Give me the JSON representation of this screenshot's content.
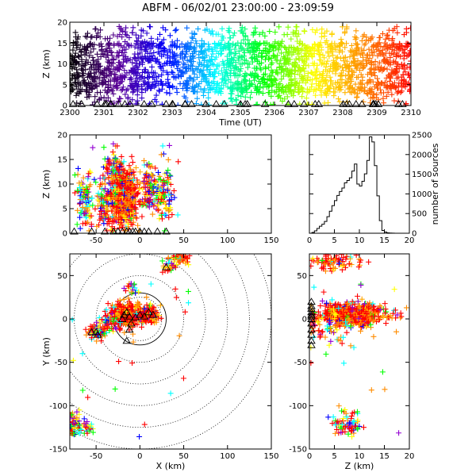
{
  "title": "ABFM - 06/02/01 23:00:00 - 23:09:59",
  "chart_data": [
    {
      "id": "time-height",
      "type": "scatter",
      "xlabel": "Time (UT)",
      "ylabel": "Z (km)",
      "xlim": [
        2300,
        2310
      ],
      "ylim": [
        0,
        20
      ],
      "xticks": [
        "2300",
        "2301",
        "2302",
        "2303",
        "2304",
        "2305",
        "2306",
        "2307",
        "2308",
        "2309",
        "2310"
      ],
      "yticks": [
        "0",
        "5",
        "10",
        "15",
        "20"
      ],
      "main_band_z": [
        3,
        15
      ],
      "color_encoding": "time",
      "color_scale": [
        "#000000",
        "#5b0099",
        "#0000ff",
        "#00ffff",
        "#00ff00",
        "#ffff00",
        "#ff8c00",
        "#ff0000"
      ]
    },
    {
      "id": "x-height",
      "type": "scatter",
      "xlabel": "",
      "ylabel": "Z (km)",
      "xlim": [
        -80,
        150
      ],
      "ylim": [
        0,
        20
      ],
      "xticks": [
        "-50",
        "0",
        "50",
        "100",
        "150"
      ],
      "yticks": [
        "0",
        "5",
        "10",
        "15",
        "20"
      ],
      "core_x_range": [
        -30,
        5
      ],
      "core_z_range": [
        2,
        14
      ]
    },
    {
      "id": "height-histogram",
      "type": "line",
      "xlabel": "",
      "ylabel": "number of sources",
      "xlim": [
        0,
        20
      ],
      "ylim": [
        0,
        2500
      ],
      "xticks": [
        "0",
        "5",
        "10",
        "15",
        "20"
      ],
      "yticks": [
        "0",
        "500",
        "1000",
        "1500",
        "2000",
        "2500"
      ],
      "x": [
        0,
        0.5,
        1,
        1.5,
        2,
        2.5,
        3,
        3.5,
        4,
        4.5,
        5,
        5.5,
        6,
        6.5,
        7,
        7.5,
        8,
        8.5,
        9,
        9.5,
        10,
        10.5,
        11,
        11.5,
        12,
        12.5,
        13,
        13.5,
        14,
        14.5,
        15,
        15.5,
        16,
        16.5,
        17,
        17.5,
        18,
        18.5,
        19,
        19.5
      ],
      "values": [
        0,
        20,
        60,
        120,
        180,
        230,
        300,
        420,
        560,
        700,
        830,
        960,
        1060,
        1150,
        1280,
        1340,
        1410,
        1580,
        1760,
        1250,
        1200,
        1320,
        1510,
        1850,
        2450,
        2320,
        1720,
        950,
        320,
        70,
        30,
        10,
        5,
        2,
        0,
        0,
        0,
        0,
        0,
        0
      ]
    },
    {
      "id": "plan-view",
      "type": "scatter",
      "xlabel": "X (km)",
      "ylabel": "Y (km)",
      "xlim": [
        -80,
        150
      ],
      "ylim": [
        -150,
        75
      ],
      "xticks": [
        "-50",
        "0",
        "50",
        "100",
        "150"
      ],
      "yticks": [
        "-150",
        "-100",
        "-50",
        "0",
        "50"
      ],
      "range_rings_km": [
        25,
        50,
        75,
        100,
        125,
        150
      ],
      "solid_ring_km": 30
    },
    {
      "id": "height-y",
      "type": "scatter",
      "xlabel": "Z (km)",
      "ylabel": "",
      "xlim": [
        0,
        20
      ],
      "ylim": [
        -150,
        75
      ],
      "xticks": [
        "0",
        "5",
        "10",
        "15",
        "20"
      ],
      "yticks": [
        "-150",
        "-100",
        "-50",
        "0",
        "50"
      ]
    }
  ]
}
